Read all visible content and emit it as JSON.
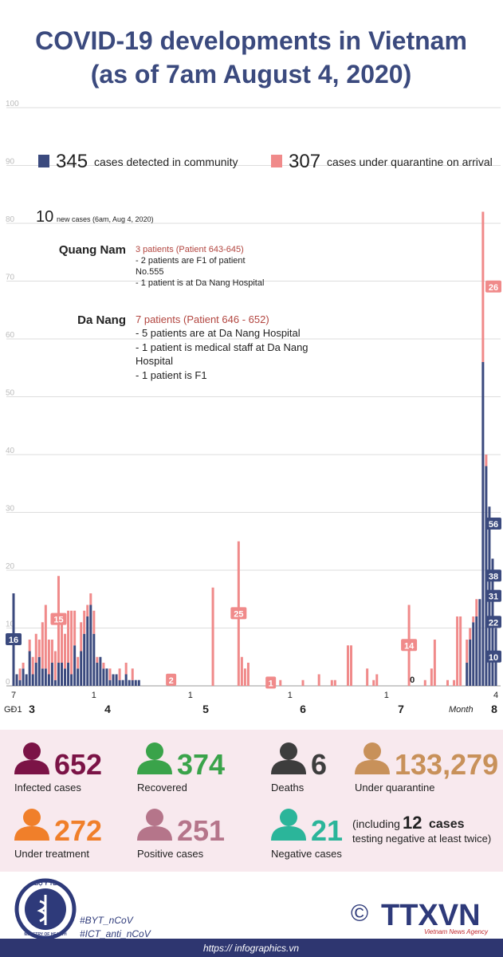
{
  "title": [
    "COVID-19 developments in Vietnam",
    "(as of 7am August 4, 2020)"
  ],
  "chart_data": {
    "type": "bar",
    "stacked": true,
    "grid": true,
    "ylim": [
      0,
      100
    ],
    "yticks": [
      0,
      10,
      20,
      30,
      40,
      50,
      60,
      70,
      80,
      90,
      100
    ],
    "categories": [
      "7",
      null,
      null,
      null,
      null,
      null,
      null,
      null,
      null,
      null,
      null,
      null,
      null,
      null,
      null,
      null,
      null,
      null,
      null,
      null,
      null,
      null,
      null,
      null,
      null,
      "1",
      null,
      null,
      null,
      null,
      null,
      null,
      null,
      null,
      null,
      null,
      null,
      null,
      null,
      null,
      null,
      null,
      null,
      null,
      null,
      null,
      null,
      null,
      null,
      null,
      null,
      null,
      null,
      null,
      null,
      "1",
      null,
      null,
      null,
      null,
      null,
      null,
      null,
      null,
      null,
      null,
      null,
      null,
      null,
      null,
      null,
      null,
      null,
      null,
      null,
      null,
      null,
      null,
      null,
      null,
      null,
      null,
      null,
      null,
      null,
      null,
      "1",
      null,
      null,
      null,
      null,
      null,
      null,
      null,
      null,
      null,
      null,
      null,
      null,
      null,
      null,
      null,
      null,
      null,
      null,
      null,
      null,
      null,
      null,
      null,
      null,
      null,
      null,
      null,
      null,
      null,
      "1",
      null,
      null,
      null,
      null,
      null,
      null,
      null,
      null,
      null,
      null,
      null,
      null,
      null,
      null,
      null,
      null,
      null,
      null,
      null,
      null,
      null,
      null,
      null,
      null,
      null,
      null,
      null,
      null,
      null,
      null,
      null,
      null,
      null,
      "4"
    ],
    "phase_label": "GĐ1",
    "month_axis_label": "Month",
    "month_labels": [
      "3",
      "4",
      "5",
      "6",
      "7",
      "8"
    ],
    "series": [
      {
        "name": "cases detected in community",
        "total": "345",
        "color": "#3b4a7e",
        "values": [
          16,
          2,
          1,
          3,
          2,
          6,
          2,
          4,
          5,
          3,
          3,
          2,
          4,
          1,
          4,
          4,
          3,
          4,
          2,
          7,
          3,
          6,
          9,
          12,
          14,
          9,
          4,
          5,
          3,
          3,
          1,
          2,
          2,
          1,
          1,
          2,
          1,
          1,
          1,
          1,
          0,
          0,
          0,
          0,
          0,
          0,
          0,
          0,
          0,
          0,
          0,
          0,
          0,
          0,
          0,
          0,
          0,
          0,
          0,
          0,
          0,
          0,
          0,
          0,
          0,
          0,
          0,
          0,
          0,
          0,
          0,
          0,
          0,
          0,
          0,
          0,
          0,
          0,
          0,
          0,
          0,
          0,
          0,
          0,
          0,
          0,
          0,
          0,
          0,
          0,
          0,
          0,
          0,
          0,
          0,
          0,
          0,
          0,
          0,
          0,
          0,
          0,
          0,
          0,
          0,
          0,
          0,
          0,
          0,
          0,
          0,
          0,
          0,
          0,
          0,
          0,
          0,
          0,
          0,
          0,
          0,
          0,
          0,
          0,
          0,
          0,
          0,
          0,
          0,
          0,
          0,
          0,
          0,
          0,
          0,
          0,
          0,
          0,
          0,
          0,
          0,
          4,
          8,
          11,
          12,
          15,
          56,
          38,
          31,
          22,
          10
        ],
        "value_labels": [
          "16",
          null,
          null,
          null,
          null,
          null,
          null,
          null,
          null,
          null,
          null,
          null,
          null,
          null,
          null,
          null,
          null,
          null,
          null,
          null,
          null,
          null,
          null,
          null,
          null,
          null,
          null,
          null,
          null,
          null,
          null,
          null,
          null,
          null,
          null,
          null,
          null,
          null,
          null,
          null,
          null,
          null,
          null,
          null,
          null,
          null,
          null,
          null,
          null,
          null,
          null,
          null,
          null,
          null,
          null,
          null,
          null,
          null,
          null,
          null,
          null,
          null,
          null,
          null,
          null,
          null,
          null,
          null,
          null,
          null,
          null,
          null,
          null,
          null,
          null,
          null,
          null,
          null,
          null,
          null,
          null,
          null,
          null,
          null,
          null,
          null,
          null,
          null,
          null,
          null,
          null,
          null,
          null,
          null,
          null,
          null,
          null,
          null,
          null,
          null,
          null,
          null,
          null,
          null,
          null,
          null,
          null,
          null,
          null,
          null,
          null,
          null,
          null,
          null,
          null,
          null,
          null,
          null,
          null,
          null,
          null,
          null,
          null,
          null,
          null,
          null,
          null,
          null,
          null,
          null,
          null,
          null,
          null,
          null,
          null,
          null,
          null,
          null,
          null,
          null,
          null,
          null,
          null,
          null,
          null,
          null,
          "56",
          "38",
          "31",
          "22",
          "10"
        ]
      },
      {
        "name": "cases under quarantine on arrival",
        "total": "307",
        "color": "#f08a8a",
        "values": [
          0,
          0,
          2,
          1,
          0,
          2,
          3,
          5,
          3,
          8,
          11,
          6,
          4,
          5,
          15,
          7,
          6,
          9,
          11,
          6,
          2,
          5,
          4,
          2,
          2,
          4,
          1,
          0,
          1,
          0,
          2,
          0,
          0,
          2,
          0,
          2,
          0,
          2,
          0,
          0,
          0,
          0,
          0,
          0,
          0,
          0,
          0,
          0,
          0,
          2,
          0,
          0,
          0,
          0,
          0,
          0,
          0,
          0,
          0,
          0,
          0,
          0,
          17,
          0,
          0,
          0,
          0,
          0,
          0,
          0,
          25,
          5,
          3,
          4,
          0,
          0,
          0,
          0,
          0,
          0,
          1,
          1,
          0,
          1,
          0,
          0,
          0,
          0,
          0,
          0,
          1,
          0,
          0,
          0,
          0,
          2,
          0,
          0,
          0,
          1,
          1,
          0,
          0,
          0,
          7,
          7,
          0,
          0,
          0,
          0,
          3,
          0,
          1,
          2,
          0,
          0,
          0,
          0,
          0,
          0,
          0,
          0,
          0,
          14,
          0,
          0,
          0,
          0,
          1,
          0,
          3,
          8,
          0,
          0,
          0,
          1,
          0,
          1,
          12,
          12,
          0,
          4,
          2,
          1,
          3,
          0,
          26,
          2,
          0,
          0,
          0
        ],
        "value_labels": [
          null,
          null,
          null,
          null,
          null,
          null,
          null,
          null,
          null,
          null,
          null,
          null,
          null,
          null,
          "15",
          null,
          null,
          null,
          null,
          null,
          null,
          null,
          null,
          null,
          null,
          null,
          null,
          null,
          null,
          null,
          null,
          null,
          null,
          null,
          null,
          null,
          null,
          null,
          null,
          null,
          null,
          null,
          null,
          null,
          null,
          null,
          null,
          null,
          null,
          "2",
          null,
          null,
          null,
          null,
          null,
          null,
          null,
          null,
          null,
          null,
          null,
          null,
          null,
          null,
          null,
          null,
          null,
          null,
          null,
          null,
          "25",
          null,
          null,
          null,
          null,
          null,
          null,
          null,
          null,
          null,
          "1",
          null,
          null,
          null,
          null,
          null,
          null,
          null,
          null,
          null,
          null,
          null,
          null,
          null,
          null,
          null,
          null,
          null,
          null,
          null,
          null,
          null,
          null,
          null,
          null,
          null,
          null,
          null,
          null,
          null,
          null,
          null,
          null,
          null,
          null,
          null,
          null,
          null,
          null,
          null,
          null,
          null,
          null,
          "14",
          "0",
          null,
          null,
          null,
          null,
          null,
          null,
          null,
          null,
          null,
          null,
          null,
          null,
          null,
          null,
          null,
          null,
          null,
          null,
          null,
          null,
          null,
          "26",
          null,
          null,
          null,
          null
        ]
      }
    ],
    "annotation": {
      "new_cases": "10",
      "new_cases_text": "new cases (6am, Aug 4, 2020)",
      "places": [
        {
          "name": "Quang Nam",
          "heading": "3 patients (Patient 643-645)",
          "lines": [
            "- 2 patients are F1 of patient",
            "No.555",
            "- 1 patient is at Da Nang Hospital"
          ]
        },
        {
          "name": "Da Nang",
          "heading": "7 patients (Patient 646 - 652)",
          "lines": [
            "- 5 patients are at Da Nang Hospital",
            "- 1 patient is medical staff at Da Nang",
            "Hospital",
            "- 1 patient is F1"
          ]
        }
      ]
    }
  },
  "stats": [
    {
      "number": "652",
      "label": "Infected cases",
      "color": "#7b1346"
    },
    {
      "number": "374",
      "label": "Recovered",
      "color": "#3aa34a"
    },
    {
      "number": "6",
      "label": "Deaths",
      "color": "#3d3d3d"
    },
    {
      "number": "133,279",
      "label": "Under quarantine",
      "color": "#c8915a"
    },
    {
      "number": "272",
      "label": "Under treatment",
      "color": "#f07f2a"
    },
    {
      "number": "251",
      "label": "Positive cases",
      "color": "#b5758a"
    },
    {
      "number": "21",
      "label": "Negative cases",
      "color": "#2bb59a"
    }
  ],
  "note": {
    "prefix": "(including",
    "number": "12",
    "suffix": "cases",
    "line2": "testing negative at least twice)"
  },
  "footer": {
    "logo_top": "BỘ Y TẾ",
    "logo_bottom": "MINISTRY OF HEALTH",
    "hashtags": [
      "#BYT_nCoV",
      "#ICT_anti_nCoV"
    ],
    "copyright": "©",
    "agency": "TTXVN",
    "agency_sub": "Vietnam News Agency",
    "url": "https:// infographics.vn"
  }
}
